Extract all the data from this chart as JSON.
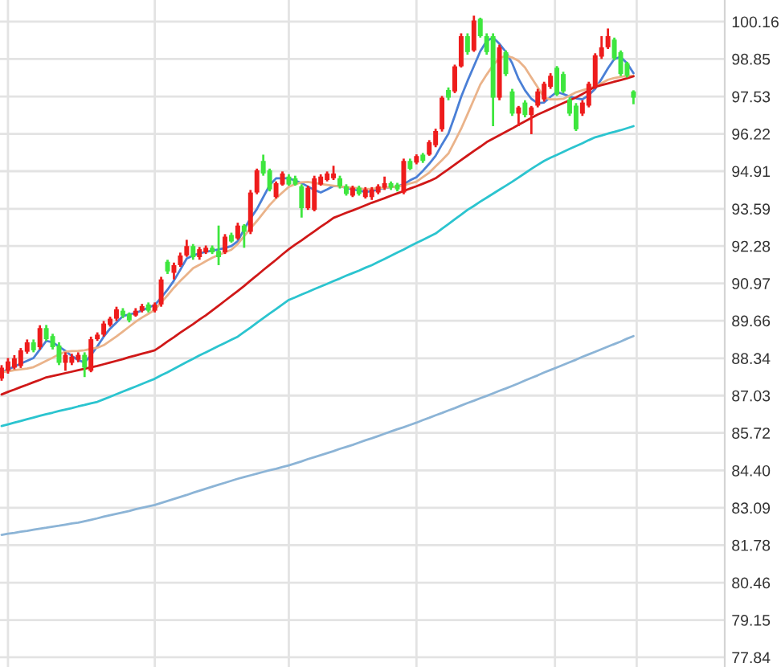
{
  "chart_data": {
    "type": "candlestick",
    "categories": [
      null,
      null,
      null,
      null,
      null,
      null,
      null,
      null,
      null,
      null,
      null,
      null,
      null,
      null,
      null,
      null,
      null,
      null,
      null,
      null,
      null,
      null,
      null,
      null,
      null,
      null,
      null,
      null,
      null,
      null,
      null,
      null,
      null,
      null,
      null,
      null,
      null,
      null,
      null,
      null,
      null,
      null,
      null,
      null,
      null,
      null,
      null,
      null,
      null,
      null,
      null,
      null,
      null,
      null,
      null,
      null,
      null,
      null,
      null,
      null,
      null,
      null,
      null,
      null,
      null,
      null,
      null,
      null,
      null,
      null,
      null,
      null,
      null,
      null,
      null,
      null,
      null,
      null,
      null,
      null,
      null,
      null,
      null,
      null,
      null,
      null,
      null,
      null,
      null,
      null,
      null,
      null,
      null,
      null,
      null,
      null,
      null,
      null,
      null,
      null
    ],
    "ohlc": [
      [
        87.63,
        88.1,
        87.55,
        88.01
      ],
      [
        87.9,
        88.35,
        87.8,
        88.23
      ],
      [
        88.01,
        88.45,
        87.95,
        88.34
      ],
      [
        88.07,
        88.7,
        88.0,
        88.62
      ],
      [
        88.57,
        89.0,
        88.5,
        88.9
      ],
      [
        88.9,
        89.0,
        88.55,
        88.62
      ],
      [
        88.73,
        89.5,
        88.65,
        89.4
      ],
      [
        89.4,
        89.51,
        88.95,
        89.01
      ],
      [
        89.12,
        89.2,
        88.65,
        88.73
      ],
      [
        88.79,
        88.9,
        88.1,
        88.18
      ],
      [
        88.18,
        88.55,
        87.9,
        88.46
      ],
      [
        88.18,
        88.5,
        88.1,
        88.4
      ],
      [
        88.29,
        88.55,
        88.2,
        88.46
      ],
      [
        88.46,
        88.55,
        87.68,
        88.01
      ],
      [
        87.9,
        89.1,
        87.85,
        89.01
      ],
      [
        89.01,
        89.25,
        88.95,
        89.17
      ],
      [
        89.17,
        89.65,
        89.1,
        89.56
      ],
      [
        89.51,
        89.8,
        89.45,
        89.73
      ],
      [
        89.73,
        90.15,
        89.65,
        90.06
      ],
      [
        90.01,
        90.1,
        89.75,
        89.84
      ],
      [
        89.9,
        89.95,
        89.6,
        89.67
      ],
      [
        89.84,
        90.1,
        89.8,
        90.01
      ],
      [
        90.01,
        90.25,
        89.95,
        90.17
      ],
      [
        90.23,
        90.3,
        89.95,
        90.01
      ],
      [
        90.01,
        90.3,
        89.95,
        90.23
      ],
      [
        90.23,
        91.2,
        90.15,
        91.11
      ],
      [
        91.73,
        91.8,
        91.3,
        91.39
      ],
      [
        91.34,
        91.7,
        91.11,
        91.61
      ],
      [
        91.61,
        92.05,
        91.55,
        91.95
      ],
      [
        91.95,
        92.5,
        91.9,
        92.28
      ],
      [
        92.28,
        92.35,
        91.8,
        91.89
      ],
      [
        91.89,
        92.25,
        91.8,
        92.17
      ],
      [
        92.06,
        92.3,
        92.0,
        92.22
      ],
      [
        92.22,
        92.3,
        92.0,
        92.06
      ],
      [
        92.11,
        93.0,
        91.61,
        91.89
      ],
      [
        92.06,
        92.7,
        92.0,
        92.61
      ],
      [
        92.67,
        92.75,
        92.4,
        92.44
      ],
      [
        92.55,
        93.1,
        92.5,
        93.0
      ],
      [
        93.0,
        93.05,
        92.22,
        92.78
      ],
      [
        92.78,
        94.25,
        92.7,
        94.16
      ],
      [
        94.16,
        95.0,
        94.1,
        94.94
      ],
      [
        95.27,
        95.49,
        94.75,
        94.83
      ],
      [
        94.94,
        95.0,
        94.2,
        94.27
      ],
      [
        94.0,
        94.55,
        93.95,
        94.49
      ],
      [
        94.44,
        94.9,
        94.4,
        94.83
      ],
      [
        94.72,
        94.8,
        94.4,
        94.44
      ],
      [
        94.66,
        94.75,
        94.4,
        94.44
      ],
      [
        94.38,
        94.45,
        93.28,
        93.61
      ],
      [
        93.61,
        94.4,
        93.55,
        94.33
      ],
      [
        93.55,
        94.75,
        93.5,
        94.66
      ],
      [
        94.44,
        94.8,
        94.4,
        94.72
      ],
      [
        94.6,
        94.9,
        94.55,
        94.83
      ],
      [
        94.66,
        95.1,
        94.6,
        94.83
      ],
      [
        94.66,
        94.75,
        94.3,
        94.38
      ],
      [
        94.38,
        94.45,
        94.05,
        94.11
      ],
      [
        94.05,
        94.4,
        94.0,
        94.33
      ],
      [
        94.33,
        94.4,
        94.05,
        94.11
      ],
      [
        94.0,
        94.35,
        93.95,
        94.27
      ],
      [
        94.0,
        94.35,
        93.9,
        94.27
      ],
      [
        94.16,
        94.45,
        94.1,
        94.38
      ],
      [
        94.33,
        94.72,
        94.25,
        94.49
      ],
      [
        94.49,
        94.55,
        94.25,
        94.33
      ],
      [
        94.44,
        94.5,
        94.2,
        94.27
      ],
      [
        94.16,
        95.35,
        94.1,
        95.27
      ],
      [
        95.27,
        95.35,
        94.95,
        94.99
      ],
      [
        95.21,
        95.5,
        95.15,
        95.44
      ],
      [
        95.49,
        95.55,
        95.2,
        95.27
      ],
      [
        95.49,
        96.0,
        95.45,
        95.93
      ],
      [
        95.82,
        96.4,
        95.75,
        96.32
      ],
      [
        96.38,
        97.55,
        96.3,
        97.49
      ],
      [
        97.76,
        97.85,
        97.4,
        97.49
      ],
      [
        97.71,
        98.65,
        97.65,
        98.59
      ],
      [
        98.59,
        99.75,
        98.55,
        99.65
      ],
      [
        99.65,
        99.75,
        99.0,
        99.09
      ],
      [
        99.15,
        100.37,
        99.1,
        100.2
      ],
      [
        100.26,
        100.3,
        99.6,
        99.65
      ],
      [
        99.65,
        99.75,
        99.0,
        99.09
      ],
      [
        99.65,
        99.75,
        96.49,
        97.49
      ],
      [
        97.49,
        99.35,
        97.4,
        99.26
      ],
      [
        99.09,
        99.15,
        98.25,
        98.32
      ],
      [
        97.71,
        97.8,
        96.85,
        96.93
      ],
      [
        96.93,
        97.2,
        96.49,
        97.15
      ],
      [
        97.32,
        97.4,
        96.8,
        96.88
      ],
      [
        96.88,
        97.2,
        96.21,
        97.15
      ],
      [
        97.21,
        97.8,
        97.15,
        97.71
      ],
      [
        97.43,
        98.05,
        97.35,
        97.98
      ],
      [
        97.87,
        98.35,
        97.8,
        98.26
      ],
      [
        98.54,
        98.6,
        97.55,
        97.6
      ],
      [
        98.32,
        98.4,
        97.65,
        97.71
      ],
      [
        97.43,
        97.5,
        96.85,
        96.93
      ],
      [
        97.21,
        97.3,
        96.32,
        96.38
      ],
      [
        96.93,
        97.4,
        96.85,
        97.32
      ],
      [
        97.21,
        98.05,
        97.15,
        97.98
      ],
      [
        97.87,
        99.05,
        97.8,
        98.98
      ],
      [
        98.93,
        99.65,
        98.85,
        99.26
      ],
      [
        99.26,
        99.92,
        99.2,
        99.65
      ],
      [
        99.53,
        99.6,
        98.8,
        98.87
      ],
      [
        99.09,
        99.15,
        98.25,
        98.32
      ],
      [
        98.7,
        98.75,
        98.2,
        98.26
      ],
      [
        97.71,
        97.75,
        97.26,
        97.49
      ]
    ],
    "colors": [
      "#ee1c1c",
      "#ee1c1c",
      "#ee1c1c",
      "#ee1c1c",
      "#ee1c1c",
      "#3ee63e",
      "#ee1c1c",
      "#3ee63e",
      "#3ee63e",
      "#3ee63e",
      "#ee1c1c",
      "#ee1c1c",
      "#ee1c1c",
      "#3ee63e",
      "#ee1c1c",
      "#ee1c1c",
      "#ee1c1c",
      "#ee1c1c",
      "#ee1c1c",
      "#3ee63e",
      "#3ee63e",
      "#ee1c1c",
      "#ee1c1c",
      "#3ee63e",
      "#ee1c1c",
      "#ee1c1c",
      "#3ee63e",
      "#ee1c1c",
      "#ee1c1c",
      "#ee1c1c",
      "#3ee63e",
      "#ee1c1c",
      "#ee1c1c",
      "#3ee63e",
      "#3ee63e",
      "#ee1c1c",
      "#3ee63e",
      "#ee1c1c",
      "#3ee63e",
      "#ee1c1c",
      "#ee1c1c",
      "#3ee63e",
      "#3ee63e",
      "#ee1c1c",
      "#ee1c1c",
      "#3ee63e",
      "#3ee63e",
      "#3ee63e",
      "#ee1c1c",
      "#ee1c1c",
      "#ee1c1c",
      "#ee1c1c",
      "#ee1c1c",
      "#3ee63e",
      "#3ee63e",
      "#ee1c1c",
      "#3ee63e",
      "#ee1c1c",
      "#ee1c1c",
      "#ee1c1c",
      "#ee1c1c",
      "#3ee63e",
      "#3ee63e",
      "#ee1c1c",
      "#3ee63e",
      "#ee1c1c",
      "#3ee63e",
      "#ee1c1c",
      "#ee1c1c",
      "#ee1c1c",
      "#3ee63e",
      "#ee1c1c",
      "#ee1c1c",
      "#3ee63e",
      "#ee1c1c",
      "#3ee63e",
      "#3ee63e",
      "#3ee63e",
      "#ee1c1c",
      "#3ee63e",
      "#3ee63e",
      "#ee1c1c",
      "#3ee63e",
      "#ee1c1c",
      "#ee1c1c",
      "#ee1c1c",
      "#ee1c1c",
      "#3ee63e",
      "#3ee63e",
      "#3ee63e",
      "#3ee63e",
      "#ee1c1c",
      "#ee1c1c",
      "#ee1c1c",
      "#ee1c1c",
      "#ee1c1c",
      "#3ee63e",
      "#3ee63e",
      "#3ee63e",
      "#3ee63e"
    ],
    "series": [
      {
        "type": "line",
        "color": "#4a7fd6",
        "values": [
          87.85,
          87.95,
          88.05,
          88.15,
          88.25,
          88.35,
          88.65,
          88.95,
          88.9,
          88.75,
          88.6,
          88.42,
          88.28,
          88.19,
          88.45,
          88.76,
          89.1,
          89.38,
          89.6,
          89.82,
          89.88,
          89.93,
          90.02,
          90.12,
          90.21,
          90.47,
          90.75,
          91.07,
          91.45,
          91.84,
          91.95,
          92.02,
          92.08,
          92.12,
          92.16,
          92.21,
          92.28,
          92.45,
          92.87,
          93.25,
          93.58,
          94.0,
          94.42,
          94.66,
          94.66,
          94.66,
          94.58,
          94.49,
          94.37,
          94.25,
          94.16,
          94.27,
          94.39,
          94.38,
          94.32,
          94.27,
          94.23,
          94.18,
          94.21,
          94.27,
          94.32,
          94.35,
          94.37,
          94.45,
          94.59,
          94.7,
          94.92,
          95.17,
          95.45,
          95.85,
          96.22,
          96.85,
          97.52,
          98.08,
          98.6,
          99.12,
          99.48,
          99.6,
          99.38,
          99.1,
          98.7,
          98.15,
          97.75,
          97.45,
          97.3,
          97.32,
          97.52,
          97.69,
          97.62,
          97.53,
          97.47,
          97.43,
          97.58,
          97.8,
          98.15,
          98.52,
          98.85,
          98.92,
          98.7,
          98.35
        ]
      },
      {
        "type": "line",
        "color": "#eab38a",
        "values": [
          87.85,
          87.88,
          87.92,
          87.95,
          87.98,
          88.03,
          88.14,
          88.25,
          88.36,
          88.48,
          88.57,
          88.59,
          88.6,
          88.62,
          88.67,
          88.71,
          88.8,
          88.95,
          89.11,
          89.28,
          89.45,
          89.62,
          89.77,
          89.9,
          90.04,
          90.3,
          90.55,
          90.82,
          91.06,
          91.28,
          91.5,
          91.62,
          91.75,
          91.87,
          91.97,
          92.06,
          92.15,
          92.35,
          92.63,
          92.9,
          93.16,
          93.44,
          93.72,
          93.96,
          94.16,
          94.36,
          94.45,
          94.52,
          94.53,
          94.5,
          94.46,
          94.43,
          94.4,
          94.37,
          94.35,
          94.33,
          94.31,
          94.28,
          94.29,
          94.31,
          94.33,
          94.35,
          94.37,
          94.41,
          94.48,
          94.54,
          94.7,
          94.86,
          95.08,
          95.3,
          95.53,
          95.96,
          96.4,
          96.91,
          97.43,
          97.95,
          98.3,
          98.63,
          98.88,
          98.96,
          98.9,
          98.78,
          98.55,
          98.2,
          97.85,
          97.5,
          97.43,
          97.43,
          97.45,
          97.56,
          97.68,
          97.75,
          97.82,
          97.88,
          98.0,
          98.12,
          98.18,
          98.22,
          98.26,
          98.26
        ]
      },
      {
        "type": "line",
        "color": "#d01818",
        "values": [
          87.07,
          87.16,
          87.24,
          87.33,
          87.41,
          87.5,
          87.58,
          87.67,
          87.72,
          87.77,
          87.82,
          87.87,
          87.92,
          87.97,
          88.02,
          88.07,
          88.13,
          88.19,
          88.25,
          88.31,
          88.38,
          88.44,
          88.5,
          88.56,
          88.62,
          88.77,
          88.93,
          89.08,
          89.24,
          89.39,
          89.54,
          89.7,
          89.85,
          90.02,
          90.19,
          90.36,
          90.53,
          90.7,
          90.88,
          91.07,
          91.25,
          91.44,
          91.62,
          91.8,
          91.99,
          92.17,
          92.33,
          92.48,
          92.64,
          92.8,
          92.96,
          93.11,
          93.27,
          93.36,
          93.45,
          93.53,
          93.62,
          93.71,
          93.8,
          93.88,
          93.96,
          94.05,
          94.13,
          94.21,
          94.3,
          94.38,
          94.47,
          94.56,
          94.66,
          94.82,
          94.98,
          95.14,
          95.3,
          95.46,
          95.62,
          95.77,
          95.93,
          96.05,
          96.17,
          96.29,
          96.41,
          96.54,
          96.66,
          96.78,
          96.9,
          97.0,
          97.1,
          97.2,
          97.3,
          97.4,
          97.5,
          97.62,
          97.75,
          97.87,
          97.93,
          97.99,
          98.05,
          98.11,
          98.17,
          98.24
        ]
      },
      {
        "type": "line",
        "color": "#2bc4cf",
        "values": [
          85.96,
          86.02,
          86.08,
          86.14,
          86.2,
          86.26,
          86.32,
          86.38,
          86.43,
          86.49,
          86.54,
          86.59,
          86.65,
          86.7,
          86.76,
          86.81,
          86.9,
          86.99,
          87.08,
          87.17,
          87.26,
          87.35,
          87.44,
          87.53,
          87.62,
          87.74,
          87.85,
          87.97,
          88.09,
          88.21,
          88.32,
          88.44,
          88.55,
          88.66,
          88.77,
          88.88,
          88.99,
          89.1,
          89.26,
          89.42,
          89.59,
          89.75,
          89.91,
          90.07,
          90.23,
          90.39,
          90.48,
          90.58,
          90.67,
          90.77,
          90.86,
          90.95,
          91.05,
          91.14,
          91.24,
          91.33,
          91.42,
          91.52,
          91.61,
          91.72,
          91.83,
          91.94,
          92.05,
          92.16,
          92.28,
          92.39,
          92.5,
          92.61,
          92.72,
          92.89,
          93.05,
          93.22,
          93.38,
          93.55,
          93.69,
          93.84,
          93.98,
          94.12,
          94.26,
          94.4,
          94.54,
          94.69,
          94.84,
          94.99,
          95.13,
          95.27,
          95.38,
          95.48,
          95.59,
          95.69,
          95.79,
          95.89,
          96.0,
          96.1,
          96.16,
          96.23,
          96.29,
          96.35,
          96.42,
          96.49
        ]
      },
      {
        "type": "line",
        "color": "#8cb4d6",
        "values": [
          82.14,
          82.18,
          82.21,
          82.25,
          82.28,
          82.32,
          82.36,
          82.39,
          82.43,
          82.46,
          82.5,
          82.54,
          82.57,
          82.62,
          82.67,
          82.72,
          82.78,
          82.83,
          82.88,
          82.93,
          82.98,
          83.04,
          83.09,
          83.14,
          83.19,
          83.26,
          83.33,
          83.4,
          83.47,
          83.54,
          83.62,
          83.69,
          83.76,
          83.83,
          83.9,
          83.97,
          84.04,
          84.11,
          84.17,
          84.23,
          84.29,
          84.35,
          84.41,
          84.46,
          84.52,
          84.58,
          84.65,
          84.72,
          84.8,
          84.87,
          84.94,
          85.01,
          85.08,
          85.16,
          85.23,
          85.3,
          85.38,
          85.46,
          85.53,
          85.61,
          85.69,
          85.77,
          85.85,
          85.92,
          86.0,
          86.08,
          86.17,
          86.25,
          86.34,
          86.42,
          86.51,
          86.59,
          86.68,
          86.77,
          86.85,
          86.94,
          87.02,
          87.11,
          87.2,
          87.28,
          87.37,
          87.46,
          87.56,
          87.65,
          87.74,
          87.84,
          87.93,
          88.02,
          88.11,
          88.2,
          88.29,
          88.39,
          88.48,
          88.57,
          88.66,
          88.75,
          88.84,
          88.93,
          89.03,
          89.12
        ]
      }
    ],
    "ylim": [
      77.5,
      100.92
    ],
    "yticks": [
      77.84,
      79.15,
      80.46,
      81.78,
      83.09,
      {
        "value": 84.4,
        "label": "84.40"
      },
      85.72,
      87.03,
      88.34,
      89.66,
      90.97,
      92.28,
      93.59,
      94.91,
      96.22,
      97.53,
      98.85,
      100.16
    ],
    "grid": true,
    "tick_labels": "y"
  }
}
